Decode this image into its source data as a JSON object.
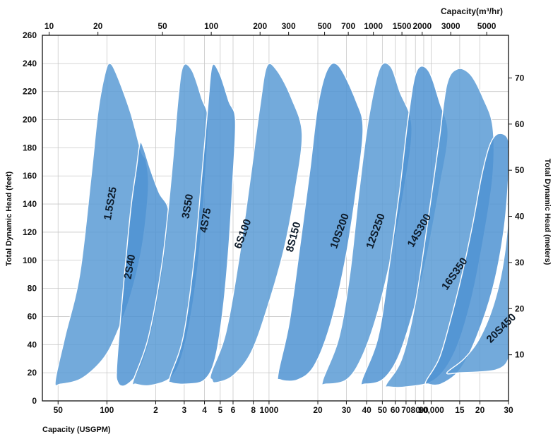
{
  "chart_data": {
    "type": "area",
    "xscale": "log",
    "grid": true,
    "x_bottom": {
      "label": "Capacity (USGPM)",
      "unit": "USGPM",
      "lim": [
        40,
        30000
      ],
      "ticks": [
        {
          "v": 50,
          "t": "50"
        },
        {
          "v": 100,
          "t": "100"
        },
        {
          "v": 200,
          "t": "2"
        },
        {
          "v": 300,
          "t": "3"
        },
        {
          "v": 400,
          "t": "4"
        },
        {
          "v": 500,
          "t": "5"
        },
        {
          "v": 600,
          "t": "6"
        },
        {
          "v": 800,
          "t": "8"
        },
        {
          "v": 1000,
          "t": "1000"
        },
        {
          "v": 2000,
          "t": "20"
        },
        {
          "v": 3000,
          "t": "30"
        },
        {
          "v": 4000,
          "t": "40"
        },
        {
          "v": 5000,
          "t": "50"
        },
        {
          "v": 6000,
          "t": "60"
        },
        {
          "v": 7000,
          "t": "70"
        },
        {
          "v": 8000,
          "t": "80"
        },
        {
          "v": 9000,
          "t": "90"
        },
        {
          "v": 10000,
          "t": "10,000"
        },
        {
          "v": 15000,
          "t": "15"
        },
        {
          "v": 20000,
          "t": "20"
        },
        {
          "v": 30000,
          "t": "30"
        }
      ]
    },
    "x_top": {
      "label": "Capacity(m³/hr)",
      "ticks": [
        {
          "v": 10,
          "t": "10"
        },
        {
          "v": 20,
          "t": "20"
        },
        {
          "v": 50,
          "t": "50"
        },
        {
          "v": 100,
          "t": "100"
        },
        {
          "v": 200,
          "t": "200"
        },
        {
          "v": 300,
          "t": "300"
        },
        {
          "v": 500,
          "t": "500"
        },
        {
          "v": 700,
          "t": "700"
        },
        {
          "v": 1000,
          "t": "1000"
        },
        {
          "v": 1500,
          "t": "1500"
        },
        {
          "v": 2000,
          "t": "2000"
        },
        {
          "v": 3000,
          "t": "3000"
        },
        {
          "v": 5000,
          "t": "5000"
        }
      ]
    },
    "y_left": {
      "label": "Total Dynamic Head (feet)",
      "lim": [
        0,
        260
      ],
      "ticks": [
        0,
        20,
        40,
        60,
        80,
        100,
        120,
        140,
        160,
        180,
        200,
        220,
        240,
        260
      ]
    },
    "y_right": {
      "label": "Total Dynamic Head (meters)",
      "ticks": [
        10,
        20,
        30,
        40,
        50,
        60,
        70
      ]
    },
    "series": [
      {
        "name": "1.5S25",
        "color": "#5b9bd5",
        "label_at": [
          110,
          140
        ],
        "label_angle": -80,
        "outline": [
          [
            48,
            14
          ],
          [
            55,
            45
          ],
          [
            68,
            90
          ],
          [
            80,
            160
          ],
          [
            88,
            205
          ],
          [
            97,
            232
          ],
          [
            104,
            240
          ],
          [
            115,
            232
          ],
          [
            140,
            205
          ],
          [
            162,
            178
          ],
          [
            175,
            170
          ],
          [
            180,
            150
          ],
          [
            165,
            110
          ],
          [
            140,
            75
          ],
          [
            115,
            48
          ],
          [
            95,
            30
          ],
          [
            70,
            16
          ],
          [
            52,
            12
          ]
        ]
      },
      {
        "name": "2S40",
        "color": "#4f93d2",
        "label_at": [
          145,
          95
        ],
        "label_angle": -80,
        "outline": [
          [
            115,
            25
          ],
          [
            125,
            75
          ],
          [
            140,
            135
          ],
          [
            152,
            165
          ],
          [
            160,
            183
          ],
          [
            168,
            180
          ],
          [
            185,
            165
          ],
          [
            210,
            148
          ],
          [
            240,
            135
          ],
          [
            228,
            105
          ],
          [
            205,
            70
          ],
          [
            180,
            40
          ],
          [
            155,
            20
          ],
          [
            130,
            11
          ],
          [
            117,
            13
          ]
        ]
      },
      {
        "name": "3S50",
        "color": "#5b9bd5",
        "label_at": [
          330,
          138
        ],
        "label_angle": -80,
        "outline": [
          [
            145,
            14
          ],
          [
            180,
            45
          ],
          [
            220,
            100
          ],
          [
            250,
            160
          ],
          [
            275,
            215
          ],
          [
            295,
            238
          ],
          [
            335,
            235
          ],
          [
            385,
            215
          ],
          [
            420,
            200
          ],
          [
            405,
            160
          ],
          [
            375,
            110
          ],
          [
            340,
            70
          ],
          [
            295,
            35
          ],
          [
            250,
            17
          ],
          [
            185,
            11
          ],
          [
            150,
            12
          ]
        ]
      },
      {
        "name": "4S75",
        "color": "#4f93d2",
        "label_at": [
          425,
          128
        ],
        "label_angle": -80,
        "outline": [
          [
            245,
            17
          ],
          [
            295,
            45
          ],
          [
            345,
            100
          ],
          [
            385,
            160
          ],
          [
            420,
            210
          ],
          [
            445,
            238
          ],
          [
            495,
            233
          ],
          [
            565,
            213
          ],
          [
            620,
            200
          ],
          [
            600,
            160
          ],
          [
            565,
            110
          ],
          [
            520,
            65
          ],
          [
            465,
            30
          ],
          [
            400,
            15
          ],
          [
            310,
            12
          ],
          [
            250,
            13
          ]
        ]
      },
      {
        "name": "6S100",
        "color": "#5b9bd5",
        "label_at": [
          720,
          118
        ],
        "label_angle": -70,
        "outline": [
          [
            440,
            20
          ],
          [
            540,
            48
          ],
          [
            650,
            100
          ],
          [
            770,
            160
          ],
          [
            880,
            210
          ],
          [
            970,
            238
          ],
          [
            1120,
            235
          ],
          [
            1380,
            215
          ],
          [
            1600,
            190
          ],
          [
            1450,
            150
          ],
          [
            1250,
            110
          ],
          [
            1000,
            70
          ],
          [
            780,
            35
          ],
          [
            600,
            18
          ],
          [
            470,
            13
          ],
          [
            445,
            15
          ]
        ]
      },
      {
        "name": "8S150",
        "color": "#4f93d2",
        "label_at": [
          1480,
          116
        ],
        "label_angle": -75,
        "outline": [
          [
            1140,
            20
          ],
          [
            1330,
            55
          ],
          [
            1550,
            110
          ],
          [
            1790,
            165
          ],
          [
            2000,
            210
          ],
          [
            2300,
            236
          ],
          [
            2700,
            238
          ],
          [
            3450,
            213
          ],
          [
            3800,
            193
          ],
          [
            3450,
            150
          ],
          [
            2950,
            100
          ],
          [
            2400,
            55
          ],
          [
            1900,
            25
          ],
          [
            1500,
            15
          ],
          [
            1180,
            15
          ]
        ]
      },
      {
        "name": "10S200",
        "color": "#5b9bd5",
        "label_at": [
          2850,
          120
        ],
        "label_angle": -70,
        "outline": [
          [
            2150,
            15
          ],
          [
            2700,
            45
          ],
          [
            3150,
            90
          ],
          [
            3600,
            150
          ],
          [
            4100,
            200
          ],
          [
            4800,
            236
          ],
          [
            5600,
            238
          ],
          [
            6400,
            220
          ],
          [
            7600,
            195
          ],
          [
            6800,
            150
          ],
          [
            5600,
            100
          ],
          [
            4600,
            60
          ],
          [
            3700,
            30
          ],
          [
            3000,
            15
          ],
          [
            2250,
            12
          ]
        ]
      },
      {
        "name": "12S250",
        "color": "#4f93d2",
        "label_at": [
          4750,
          120
        ],
        "label_angle": -70,
        "outline": [
          [
            3750,
            15
          ],
          [
            4700,
            45
          ],
          [
            5500,
            95
          ],
          [
            6400,
            150
          ],
          [
            7200,
            200
          ],
          [
            8100,
            234
          ],
          [
            9600,
            235
          ],
          [
            11300,
            212
          ],
          [
            12700,
            190
          ],
          [
            11200,
            150
          ],
          [
            9300,
            100
          ],
          [
            7600,
            60
          ],
          [
            6200,
            30
          ],
          [
            5000,
            15
          ],
          [
            3900,
            12
          ]
        ]
      },
      {
        "name": "14S300",
        "color": "#5b9bd5",
        "label_at": [
          8800,
          120
        ],
        "label_angle": -60,
        "outline": [
          [
            5300,
            12
          ],
          [
            6600,
            30
          ],
          [
            8000,
            70
          ],
          [
            9600,
            130
          ],
          [
            11200,
            185
          ],
          [
            12500,
            225
          ],
          [
            14500,
            236
          ],
          [
            17500,
            232
          ],
          [
            21000,
            215
          ],
          [
            24000,
            195
          ],
          [
            24000,
            160
          ],
          [
            21000,
            115
          ],
          [
            17500,
            70
          ],
          [
            14000,
            35
          ],
          [
            10500,
            15
          ],
          [
            7000,
            10
          ],
          [
            5500,
            10
          ]
        ]
      },
      {
        "name": "16S350",
        "color": "#4f93d2",
        "label_at": [
          14500,
          89
        ],
        "label_angle": -55,
        "outline": [
          [
            9300,
            14
          ],
          [
            11200,
            30
          ],
          [
            13000,
            55
          ],
          [
            15500,
            90
          ],
          [
            18000,
            125
          ],
          [
            20500,
            160
          ],
          [
            23000,
            182
          ],
          [
            26000,
            190
          ],
          [
            30000,
            185
          ],
          [
            31000,
            160
          ],
          [
            28000,
            120
          ],
          [
            24000,
            80
          ],
          [
            19000,
            45
          ],
          [
            15000,
            22
          ],
          [
            11500,
            12
          ],
          [
            9600,
            12
          ]
        ]
      },
      {
        "name": "20S450",
        "color": "#5b9bd5",
        "label_at": [
          28000,
          50
        ],
        "label_angle": -45,
        "outline": [
          [
            12500,
            20
          ],
          [
            16000,
            30
          ],
          [
            20000,
            45
          ],
          [
            24500,
            70
          ],
          [
            28000,
            100
          ],
          [
            32000,
            135
          ],
          [
            35500,
            160
          ],
          [
            40000,
            178
          ],
          [
            48000,
            178
          ],
          [
            60000,
            170
          ],
          [
            72000,
            158
          ],
          [
            80000,
            140
          ],
          [
            74000,
            100
          ],
          [
            64000,
            70
          ],
          [
            52000,
            46
          ],
          [
            38000,
            30
          ],
          [
            25000,
            22
          ],
          [
            15000,
            20
          ]
        ]
      }
    ]
  }
}
